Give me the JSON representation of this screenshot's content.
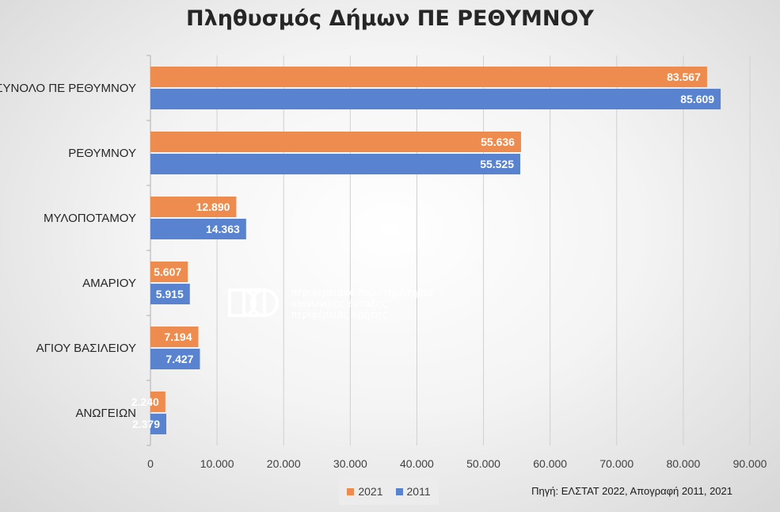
{
  "chart_data": {
    "type": "bar",
    "orientation": "horizontal",
    "title": "Πληθυσμός Δήμων ΠΕ ΡΕΘΥΜΝΟΥ",
    "categories": [
      "ΣΥΝΟΛΟ ΠΕ ΡΕΘΥΜΝΟΥ",
      "ΡΕΘΥΜΝΟΥ",
      "ΜΥΛΟΠΟΤΑΜΟΥ",
      "ΑΜΑΡΙΟΥ",
      "ΑΓΙΟΥ ΒΑΣΙΛΕΙΟΥ",
      "ΑΝΩΓΕΙΩΝ"
    ],
    "series": [
      {
        "name": "2021",
        "color": "#ed8c4e",
        "values": [
          83567,
          55636,
          12890,
          5607,
          7194,
          2240
        ],
        "labels": [
          "83.567",
          "55.636",
          "12.890",
          "5.607",
          "7.194",
          "2.240"
        ]
      },
      {
        "name": "2011",
        "color": "#5983cf",
        "values": [
          85609,
          55525,
          14363,
          5915,
          7427,
          2379
        ],
        "labels": [
          "85.609",
          "55.525",
          "14.363",
          "5.915",
          "7.427",
          "2.379"
        ]
      }
    ],
    "xlim": [
      0,
      90000
    ],
    "xticks": [
      0,
      10000,
      20000,
      30000,
      40000,
      50000,
      60000,
      70000,
      80000,
      90000
    ],
    "xtick_labels": [
      "0",
      "10.000",
      "20.000",
      "30.000",
      "40.000",
      "50.000",
      "60.000",
      "70.000",
      "80.000",
      "90.000"
    ],
    "grid": true,
    "legend_position": "bottom"
  },
  "source_note": "Πηγή: ΕΛΣΤΑΤ 2022, Απογραφή 2011, 2021",
  "watermark": {
    "line1": "περιφερειακό παρατηρητήριο",
    "line2": "κοινωνικής ένταξης",
    "line3": "περιφέρειας κρήτης"
  }
}
